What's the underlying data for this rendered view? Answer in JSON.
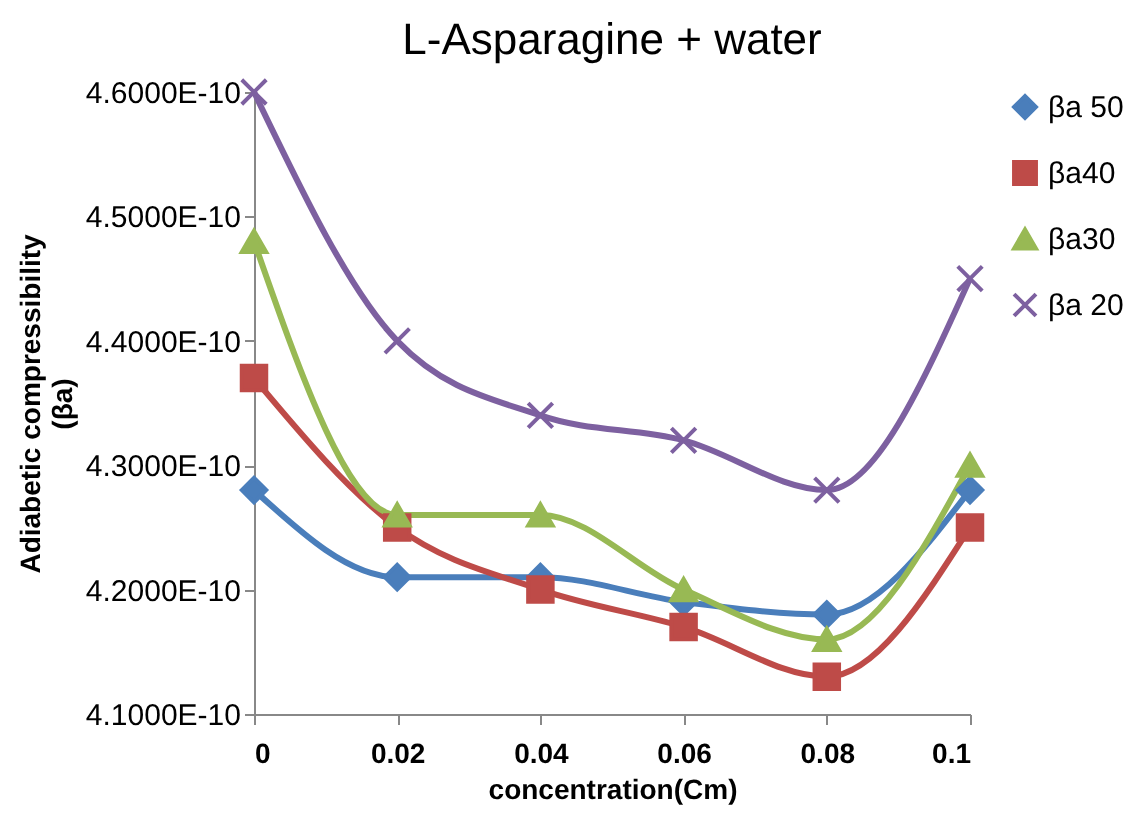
{
  "chart_data": {
    "type": "line",
    "title": "L-Asparagine + water",
    "xlabel": "concentration(Cm)",
    "ylabel": "Adiabetic compressibility (βa)",
    "x": [
      0,
      0.02,
      0.04,
      0.06,
      0.08,
      0.1
    ],
    "series": [
      {
        "name": "βa 50",
        "color": "#4a7ebb",
        "marker": "diamond",
        "values": [
          4.28e-10,
          4.21e-10,
          4.21e-10,
          4.19e-10,
          4.18e-10,
          4.28e-10
        ]
      },
      {
        "name": "βa40",
        "color": "#be4b48",
        "marker": "square",
        "values": [
          4.37e-10,
          4.25e-10,
          4.2e-10,
          4.17e-10,
          4.13e-10,
          4.25e-10
        ]
      },
      {
        "name": "βa30",
        "color": "#98b954",
        "marker": "triangle",
        "values": [
          4.48e-10,
          4.26e-10,
          4.26e-10,
          4.2e-10,
          4.16e-10,
          4.3e-10
        ]
      },
      {
        "name": "βa 20",
        "color": "#7d60a0",
        "marker": "cross",
        "values": [
          4.6e-10,
          4.4e-10,
          4.34e-10,
          4.32e-10,
          4.28e-10,
          4.45e-10
        ]
      }
    ],
    "xlim": [
      0,
      0.1
    ],
    "xticks": [
      0,
      0.02,
      0.04,
      0.06,
      0.08,
      0.1
    ],
    "ylim": [
      4.1e-10,
      4.6e-10
    ],
    "yticks": [
      {
        "value": 4.1e-10,
        "label": "4.1000E-10"
      },
      {
        "value": 4.2e-10,
        "label": "4.2000E-10"
      },
      {
        "value": 4.3e-10,
        "label": "4.3000E-10"
      },
      {
        "value": 4.4e-10,
        "label": "4.4000E-10"
      },
      {
        "value": 4.5e-10,
        "label": "4.5000E-10"
      },
      {
        "value": 4.6e-10,
        "label": "4.6000E-10"
      }
    ],
    "grid": false,
    "legend": "right",
    "line_style": "solid"
  }
}
